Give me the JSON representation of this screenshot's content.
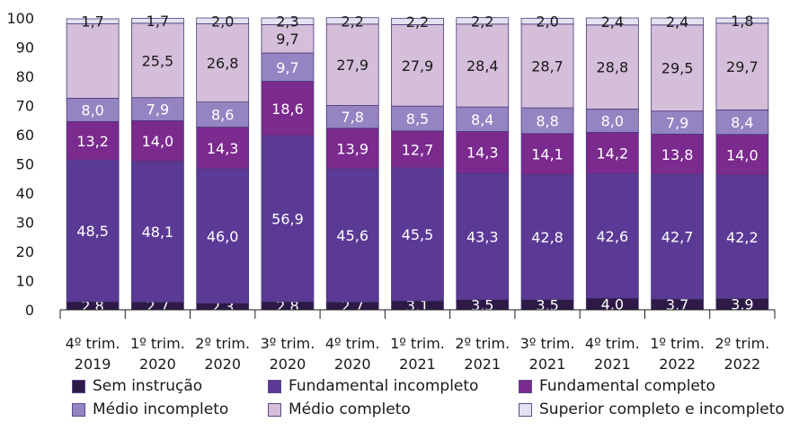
{
  "chart_data": {
    "type": "bar",
    "stacked": true,
    "ylim": [
      0,
      100
    ],
    "yticks": [
      0,
      10,
      20,
      30,
      40,
      50,
      60,
      70,
      80,
      90,
      100
    ],
    "categories": [
      [
        "4º trim.",
        "2019"
      ],
      [
        "1º trim.",
        "2020"
      ],
      [
        "2º trim.",
        "2020"
      ],
      [
        "3º trim.",
        "2020"
      ],
      [
        "4º trim.",
        "2020"
      ],
      [
        "1º trim.",
        "2021"
      ],
      [
        "2º trim.",
        "2021"
      ],
      [
        "3º trim.",
        "2021"
      ],
      [
        "4º trim.",
        "2021"
      ],
      [
        "1º trim.",
        "2022"
      ],
      [
        "2º trim.",
        "2022"
      ]
    ],
    "series": [
      {
        "name": "Sem instrução",
        "color": "#2e1a47",
        "label_color": "#ffffff",
        "values": [
          2.8,
          2.7,
          2.3,
          2.8,
          2.7,
          3.1,
          3.5,
          3.5,
          4.0,
          3.7,
          3.9
        ],
        "labels": [
          "2,8",
          "2,7",
          "2,3",
          "2,8",
          "2,7",
          "3,1",
          "3,5",
          "3,5",
          "4,0",
          "3,7",
          "3,9"
        ]
      },
      {
        "name": "Fundamental incompleto",
        "color": "#5b3a96",
        "label_color": "#ffffff",
        "values": [
          48.5,
          48.1,
          46.0,
          56.9,
          45.6,
          45.5,
          43.3,
          42.8,
          42.6,
          42.7,
          42.2
        ],
        "labels": [
          "48,5",
          "48,1",
          "46,0",
          "56,9",
          "45,6",
          "45,5",
          "43,3",
          "42,8",
          "42,6",
          "42,7",
          "42,2"
        ]
      },
      {
        "name": "Fundamental completo",
        "color": "#7b2a8e",
        "label_color": "#ffffff",
        "values": [
          13.2,
          14.0,
          14.3,
          18.6,
          13.9,
          12.7,
          14.3,
          14.1,
          14.2,
          13.8,
          14.0
        ],
        "labels": [
          "13,2",
          "14,0",
          "14,3",
          "18,6",
          "13,9",
          "12,7",
          "14,3",
          "14,1",
          "14,2",
          "13,8",
          "14,0"
        ]
      },
      {
        "name": "Médio incompleto",
        "color": "#9485c2",
        "label_color": "#ffffff",
        "values": [
          8.0,
          7.9,
          8.6,
          9.7,
          7.8,
          8.5,
          8.4,
          8.8,
          8.0,
          7.9,
          8.4
        ],
        "labels": [
          "8,0",
          "7,9",
          "8,6",
          "9,7",
          "7,8",
          "8,5",
          "8,4",
          "8,8",
          "8,0",
          "7,9",
          "8,4"
        ]
      },
      {
        "name": "Médio completo",
        "color": "#d4bed9",
        "label_color": "#1a1a1a",
        "values": [
          25.5,
          25.5,
          26.8,
          9.7,
          27.9,
          27.9,
          28.4,
          28.7,
          28.8,
          29.5,
          29.7
        ],
        "labels": [
          "",
          "25,5",
          "26,8",
          "9,7",
          "27,9",
          "27,9",
          "28,4",
          "28,7",
          "28,8",
          "29,5",
          "29,7"
        ]
      },
      {
        "name": "Superior completo e incompleto",
        "color": "#e4e1f0",
        "label_color": "#1a1a1a",
        "values": [
          1.7,
          1.7,
          2.0,
          2.3,
          2.2,
          2.2,
          2.2,
          2.0,
          2.4,
          2.4,
          1.8
        ],
        "labels": [
          "1,7",
          "1,7",
          "2,0",
          "2,3",
          "2,2",
          "2,2",
          "2,2",
          "2,0",
          "2,4",
          "2,4",
          "1,8"
        ]
      }
    ],
    "legend_position": "bottom",
    "grid": false
  }
}
